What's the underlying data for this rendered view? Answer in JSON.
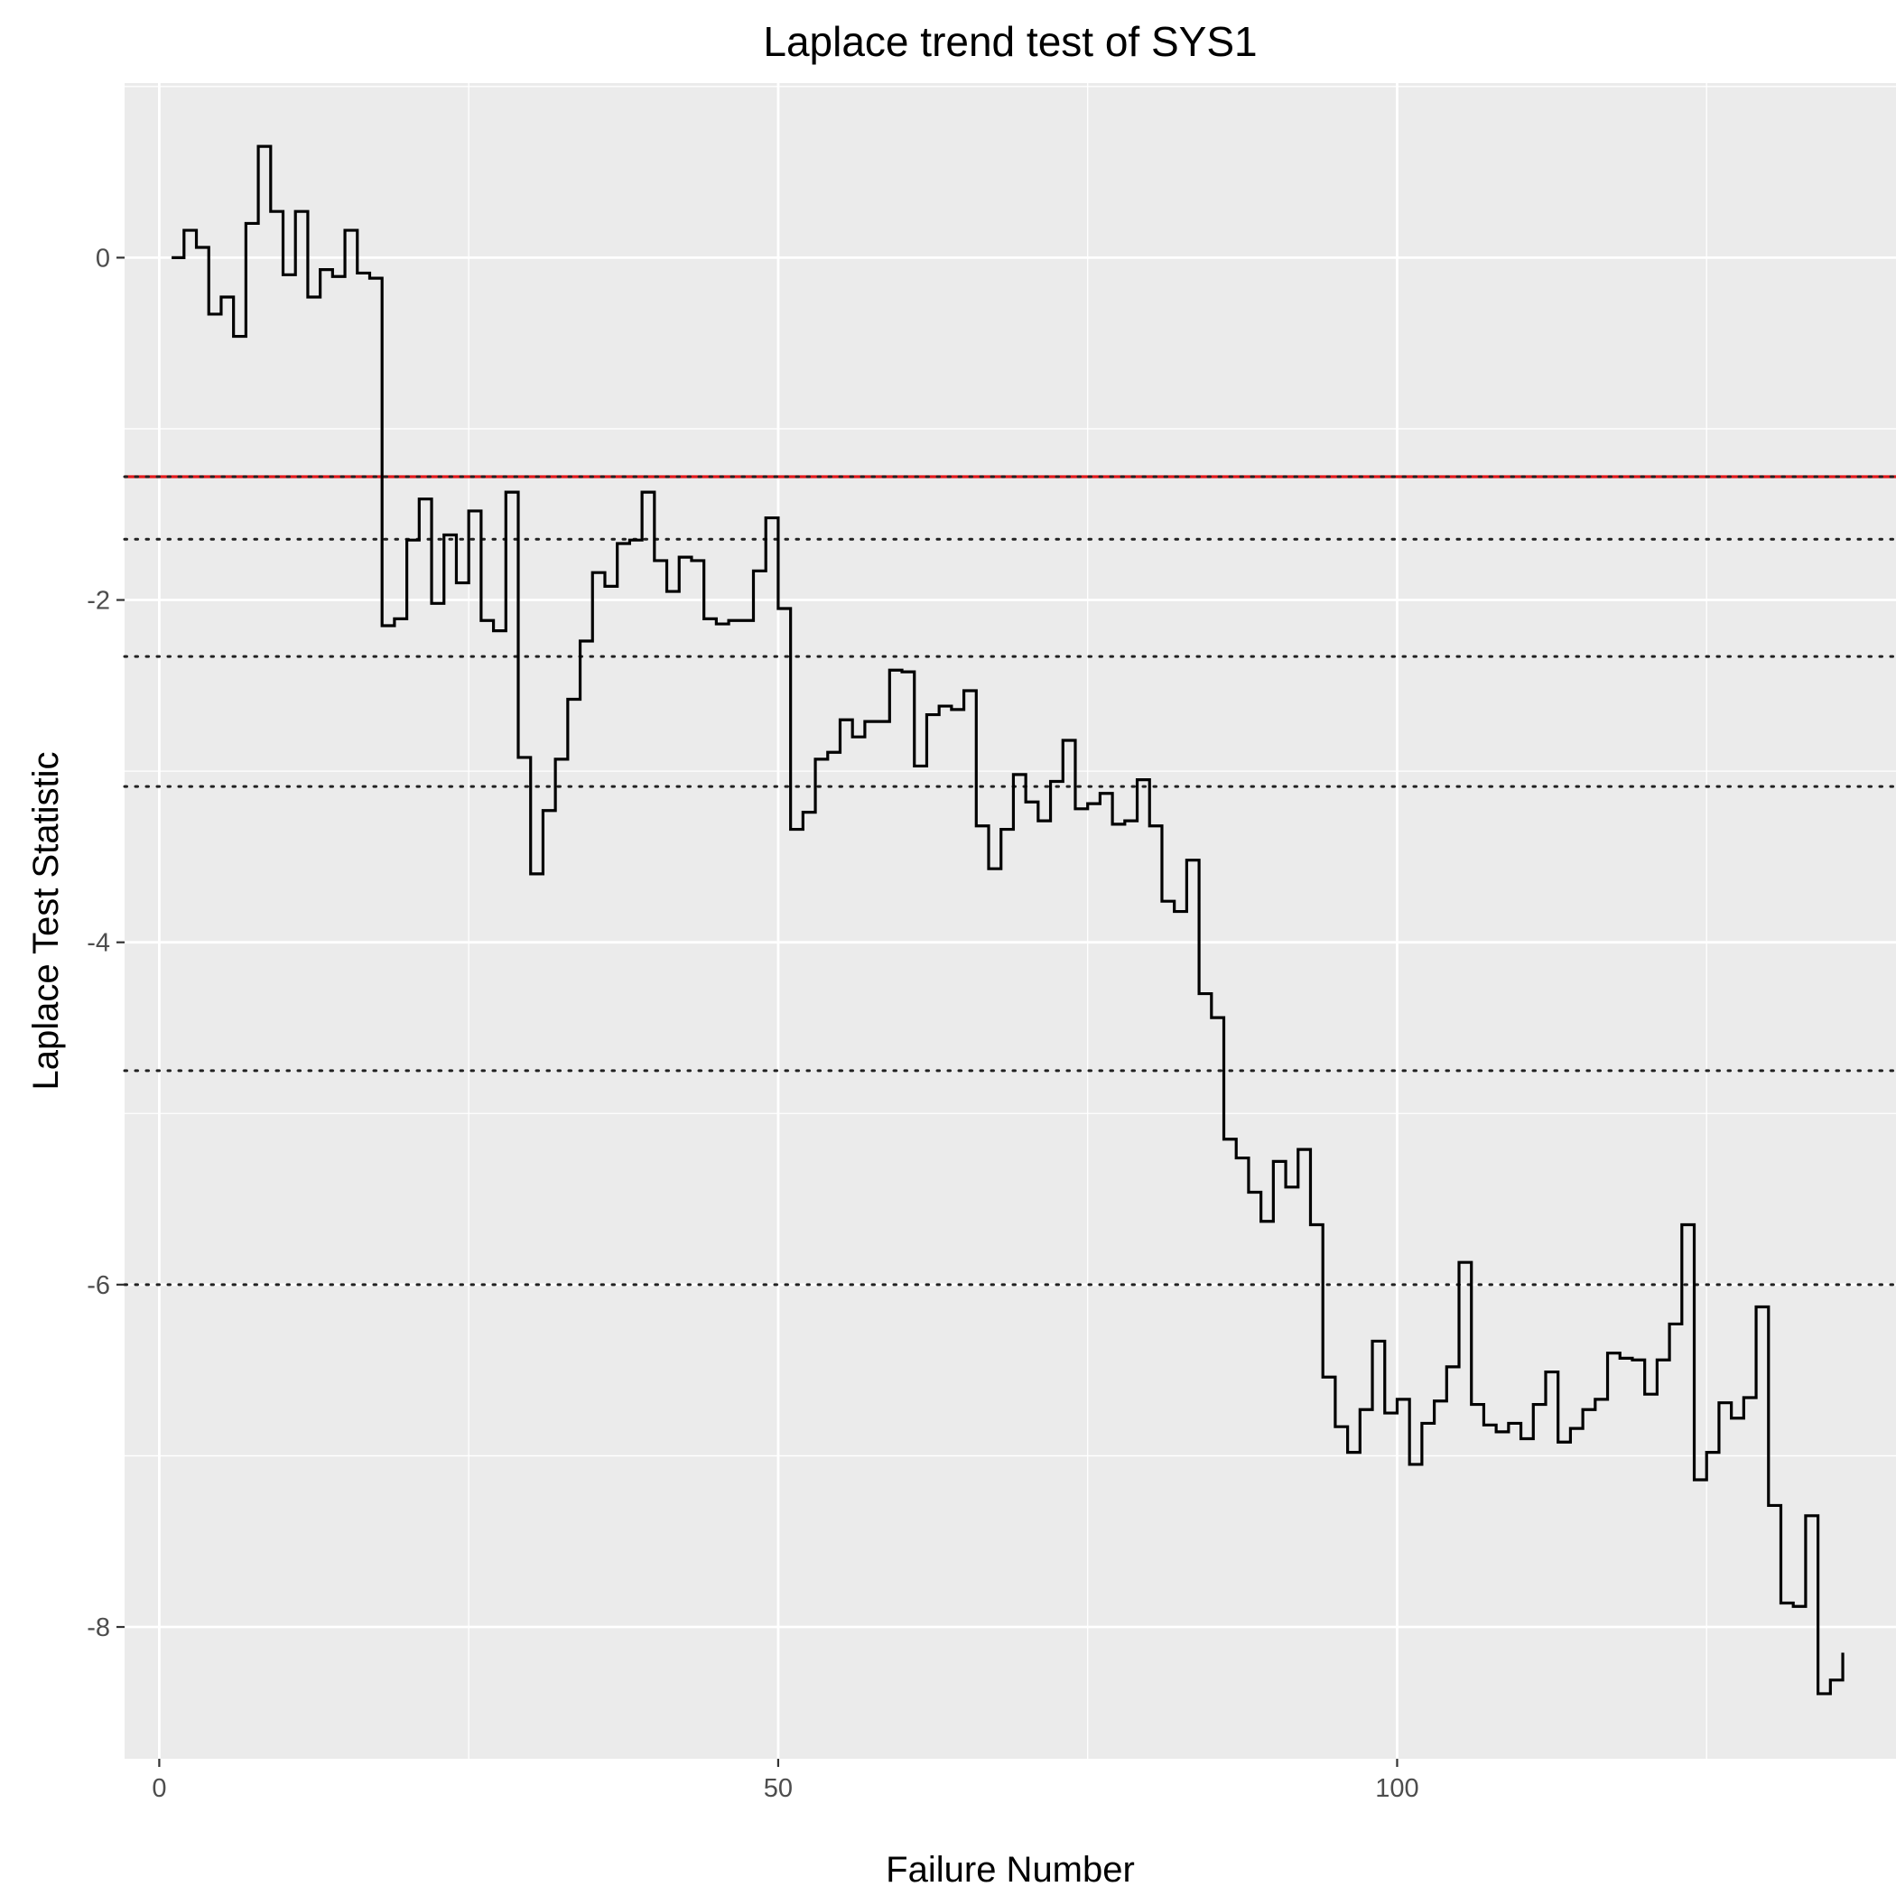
{
  "chart_data": {
    "type": "line",
    "step": true,
    "title": "Laplace trend test of SYS1",
    "xlabel": "Failure Number",
    "ylabel": "Laplace Test Statistic",
    "xlim": [
      -2.8,
      140.3
    ],
    "ylim": [
      -8.77,
      1.02
    ],
    "x_ticks": [
      0,
      50,
      100
    ],
    "x_tick_labels": [
      "0",
      "50",
      "100"
    ],
    "y_ticks": [
      0,
      -2,
      -4,
      -6,
      -8
    ],
    "y_tick_labels": [
      "0",
      "-2",
      "-4",
      "-6",
      "-8"
    ],
    "grid": true,
    "colors": {
      "panel": "#ebebeb",
      "grid": "#ffffff",
      "line": "#000000",
      "critical_line": "#e41a1c"
    },
    "reference_lines": [
      {
        "y": -1.28,
        "style": "solid",
        "color": "#e41a1c"
      },
      {
        "y": -1.28,
        "style": "dotted"
      },
      {
        "y": -1.645,
        "style": "dotted"
      },
      {
        "y": -2.33,
        "style": "dotted"
      },
      {
        "y": -3.09,
        "style": "dotted"
      },
      {
        "y": -4.75,
        "style": "dotted"
      },
      {
        "y": -6.0,
        "style": "dotted"
      }
    ],
    "series": [
      {
        "x": [
          1,
          2,
          3,
          4,
          5,
          6,
          7,
          8,
          9,
          10,
          11,
          12,
          13,
          14,
          15,
          16,
          17,
          18,
          19,
          20,
          21,
          22,
          23,
          24,
          25,
          26,
          27,
          28,
          29,
          30,
          31,
          32,
          33,
          34,
          35,
          36,
          37,
          38,
          39,
          40,
          41,
          42,
          43,
          44,
          45,
          46,
          47,
          48,
          49,
          50,
          51,
          52,
          53,
          54,
          55,
          56,
          57,
          58,
          59,
          60,
          61,
          62,
          63,
          64,
          65,
          66,
          67,
          68,
          69,
          70,
          71,
          72,
          73,
          74,
          75,
          76,
          77,
          78,
          79,
          80,
          81,
          82,
          83,
          84,
          85,
          86,
          87,
          88,
          89,
          90,
          91,
          92,
          93,
          94,
          95,
          96,
          97,
          98,
          99,
          100,
          101,
          102,
          103,
          104,
          105,
          106,
          107,
          108,
          109,
          110,
          111,
          112,
          113,
          114,
          115,
          116,
          117,
          118,
          119,
          120,
          121,
          122,
          123,
          124,
          125,
          126,
          127,
          128,
          129,
          130,
          131,
          132,
          133,
          134,
          135,
          136
        ],
        "values": [
          0.0,
          0.16,
          0.06,
          -0.33,
          -0.23,
          -0.46,
          0.2,
          0.65,
          0.27,
          -0.1,
          0.27,
          -0.23,
          -0.07,
          -0.11,
          0.16,
          -0.09,
          -0.12,
          -2.15,
          -2.11,
          -1.65,
          -1.41,
          -2.02,
          -1.62,
          -1.9,
          -1.48,
          -2.12,
          -2.18,
          -1.37,
          -2.92,
          -3.6,
          -3.23,
          -2.93,
          -2.58,
          -2.24,
          -1.84,
          -1.92,
          -1.67,
          -1.65,
          -1.37,
          -1.77,
          -1.95,
          -1.75,
          -1.77,
          -2.11,
          -2.14,
          -2.12,
          -2.12,
          -1.83,
          -1.52,
          -2.05,
          -3.34,
          -3.24,
          -2.93,
          -2.89,
          -2.7,
          -2.8,
          -2.71,
          -2.71,
          -2.41,
          -2.42,
          -2.97,
          -2.67,
          -2.62,
          -2.64,
          -2.53,
          -3.32,
          -3.57,
          -3.34,
          -3.02,
          -3.18,
          -3.29,
          -3.06,
          -2.82,
          -3.22,
          -3.19,
          -3.13,
          -3.31,
          -3.29,
          -3.05,
          -3.32,
          -3.76,
          -3.82,
          -3.52,
          -4.3,
          -4.44,
          -5.15,
          -5.26,
          -5.46,
          -5.63,
          -5.28,
          -5.43,
          -5.21,
          -5.65,
          -6.54,
          -6.83,
          -6.98,
          -6.73,
          -6.33,
          -6.75,
          -6.67,
          -7.05,
          -6.81,
          -6.68,
          -6.48,
          -5.87,
          -6.7,
          -6.82,
          -6.86,
          -6.81,
          -6.9,
          -6.7,
          -6.51,
          -6.92,
          -6.84,
          -6.73,
          -6.67,
          -6.4,
          -6.43,
          -6.44,
          -6.64,
          -6.44,
          -6.23,
          -5.65,
          -7.14,
          -6.98,
          -6.69,
          -6.78,
          -6.66,
          -6.13,
          -7.29,
          -7.86,
          -7.88,
          -7.35,
          -8.39,
          -8.31,
          -8.15
        ]
      }
    ]
  }
}
